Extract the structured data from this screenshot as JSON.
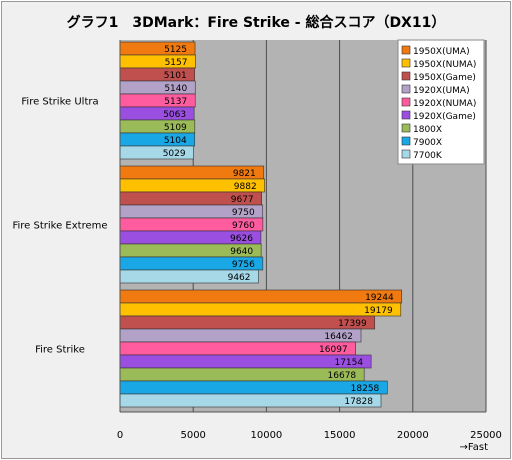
{
  "chart_data": {
    "type": "bar",
    "orientation": "horizontal",
    "title": "グラフ1　3DMark：Fire Strike - 総合スコア（DX11）",
    "xlabel": "→Fast",
    "xlim": [
      0,
      25000
    ],
    "xticks": [
      0,
      5000,
      10000,
      15000,
      20000,
      25000
    ],
    "grid": true,
    "legend_position": "top-right",
    "categories": [
      "Fire Strike Ultra",
      "Fire Strike Extreme",
      "Fire Strike"
    ],
    "series": [
      {
        "name": "1950X(UMA)",
        "color": "#f07a10",
        "values": [
          5125,
          9821,
          19244
        ]
      },
      {
        "name": "1950X(NUMA)",
        "color": "#ffc000",
        "values": [
          5157,
          9882,
          19179
        ]
      },
      {
        "name": "1950X(Game)",
        "color": "#c0504d",
        "values": [
          5101,
          9677,
          17399
        ]
      },
      {
        "name": "1920X(UMA)",
        "color": "#b3a2c7",
        "values": [
          5140,
          9750,
          16462
        ]
      },
      {
        "name": "1920X(NUMA)",
        "color": "#ff5ca0",
        "values": [
          5137,
          9760,
          16097
        ]
      },
      {
        "name": "1920X(Game)",
        "color": "#9b4fe0",
        "values": [
          5063,
          9626,
          17154
        ]
      },
      {
        "name": "1800X",
        "color": "#9bbb59",
        "values": [
          5109,
          9640,
          16678
        ]
      },
      {
        "name": "7900X",
        "color": "#1aa7e6",
        "values": [
          5104,
          9756,
          18258
        ]
      },
      {
        "name": "7700K",
        "color": "#a6d8e8",
        "values": [
          5029,
          9462,
          17828
        ]
      }
    ]
  }
}
